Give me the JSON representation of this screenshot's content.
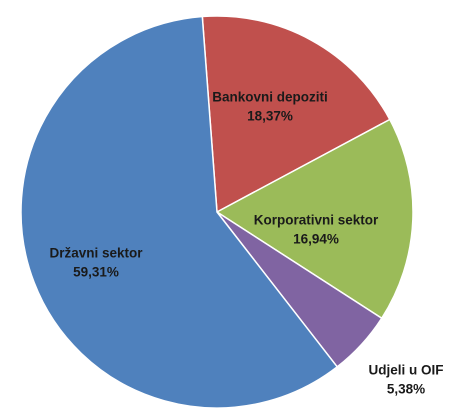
{
  "chart_data": {
    "type": "pie",
    "categories": [
      "Bankovni depoziti",
      "Korporativni sektor",
      "Udjeli u OIF",
      "Državni sektor"
    ],
    "values": [
      18.37,
      16.94,
      5.38,
      59.31
    ],
    "value_labels": [
      "18,37%",
      "16,94%",
      "5,38%",
      "59,31%"
    ],
    "colors": [
      "#c0504d",
      "#9bbb59",
      "#8064a2",
      "#4f81bd"
    ]
  }
}
